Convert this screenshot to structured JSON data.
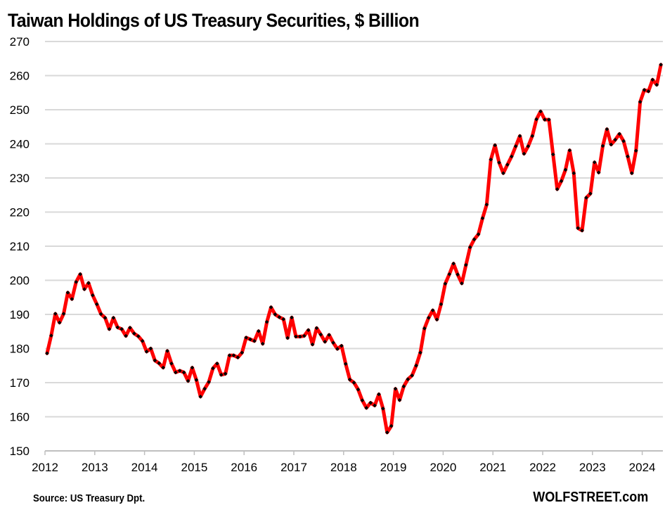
{
  "chart_data": {
    "type": "line",
    "title": "Taiwan Holdings of US Treasury Securities, $ Billion",
    "xlabel": "",
    "ylabel": "",
    "ylim": [
      150,
      270
    ],
    "yticks": [
      150,
      160,
      170,
      180,
      190,
      200,
      210,
      220,
      230,
      240,
      250,
      260,
      270
    ],
    "xticks": [
      "2012",
      "2013",
      "2014",
      "2015",
      "2016",
      "2017",
      "2018",
      "2019",
      "2020",
      "2021",
      "2022",
      "2023",
      "2024"
    ],
    "x_start": "2012-01",
    "x_frequency": "monthly",
    "grid": true,
    "legend": "none",
    "series": [
      {
        "name": "Taiwan Holdings",
        "color": "#ff0000",
        "marker_color": "#000000",
        "values": [
          178.6,
          183.8,
          190.2,
          187.6,
          190.2,
          196.4,
          194.5,
          199.5,
          201.8,
          197.4,
          199.2,
          195.6,
          193.0,
          190.1,
          189.0,
          185.7,
          189.0,
          186.2,
          185.7,
          183.7,
          186.1,
          184.4,
          183.6,
          182.2,
          179.1,
          180.0,
          176.5,
          175.7,
          174.4,
          179.3,
          175.6,
          173.0,
          173.5,
          173.0,
          170.5,
          174.4,
          170.8,
          165.9,
          168.2,
          170.2,
          174.2,
          175.6,
          172.3,
          172.6,
          178.0,
          178.0,
          177.4,
          178.8,
          183.2,
          182.7,
          182.2,
          185.1,
          181.4,
          187.8,
          192.1,
          190.0,
          189.2,
          188.6,
          183.1,
          189.1,
          183.5,
          183.5,
          183.7,
          185.4,
          181.2,
          186.0,
          184.1,
          182.0,
          184.0,
          181.7,
          179.9,
          180.8,
          175.5,
          170.9,
          170.0,
          168.0,
          164.8,
          162.6,
          164.1,
          163.3,
          166.6,
          162.4,
          155.4,
          157.3,
          168.2,
          164.9,
          168.9,
          171.0,
          172.1,
          175.0,
          178.8,
          185.9,
          189.0,
          191.2,
          188.5,
          193.0,
          199.0,
          201.8,
          204.9,
          201.7,
          199.1,
          204.5,
          209.7,
          212.0,
          213.5,
          218.2,
          222.2,
          235.4,
          239.6,
          234.5,
          231.4,
          233.9,
          236.3,
          239.3,
          242.3,
          237.1,
          239.3,
          242.3,
          247.2,
          249.5,
          247.1,
          247.1,
          236.9,
          226.7,
          229.1,
          232.4,
          238.1,
          231.4,
          215.3,
          214.6,
          224.2,
          225.4,
          234.6,
          231.6,
          239.4,
          244.3,
          239.8,
          241.2,
          242.9,
          240.8,
          236.3,
          231.4,
          238.0,
          252.3,
          255.8,
          255.4,
          258.8,
          257.3,
          263.2
        ]
      }
    ],
    "source": "Source: US Treasury  Dpt.",
    "brand": "WOLFSTREET.com",
    "gridline_color": "#d9d9d9"
  }
}
